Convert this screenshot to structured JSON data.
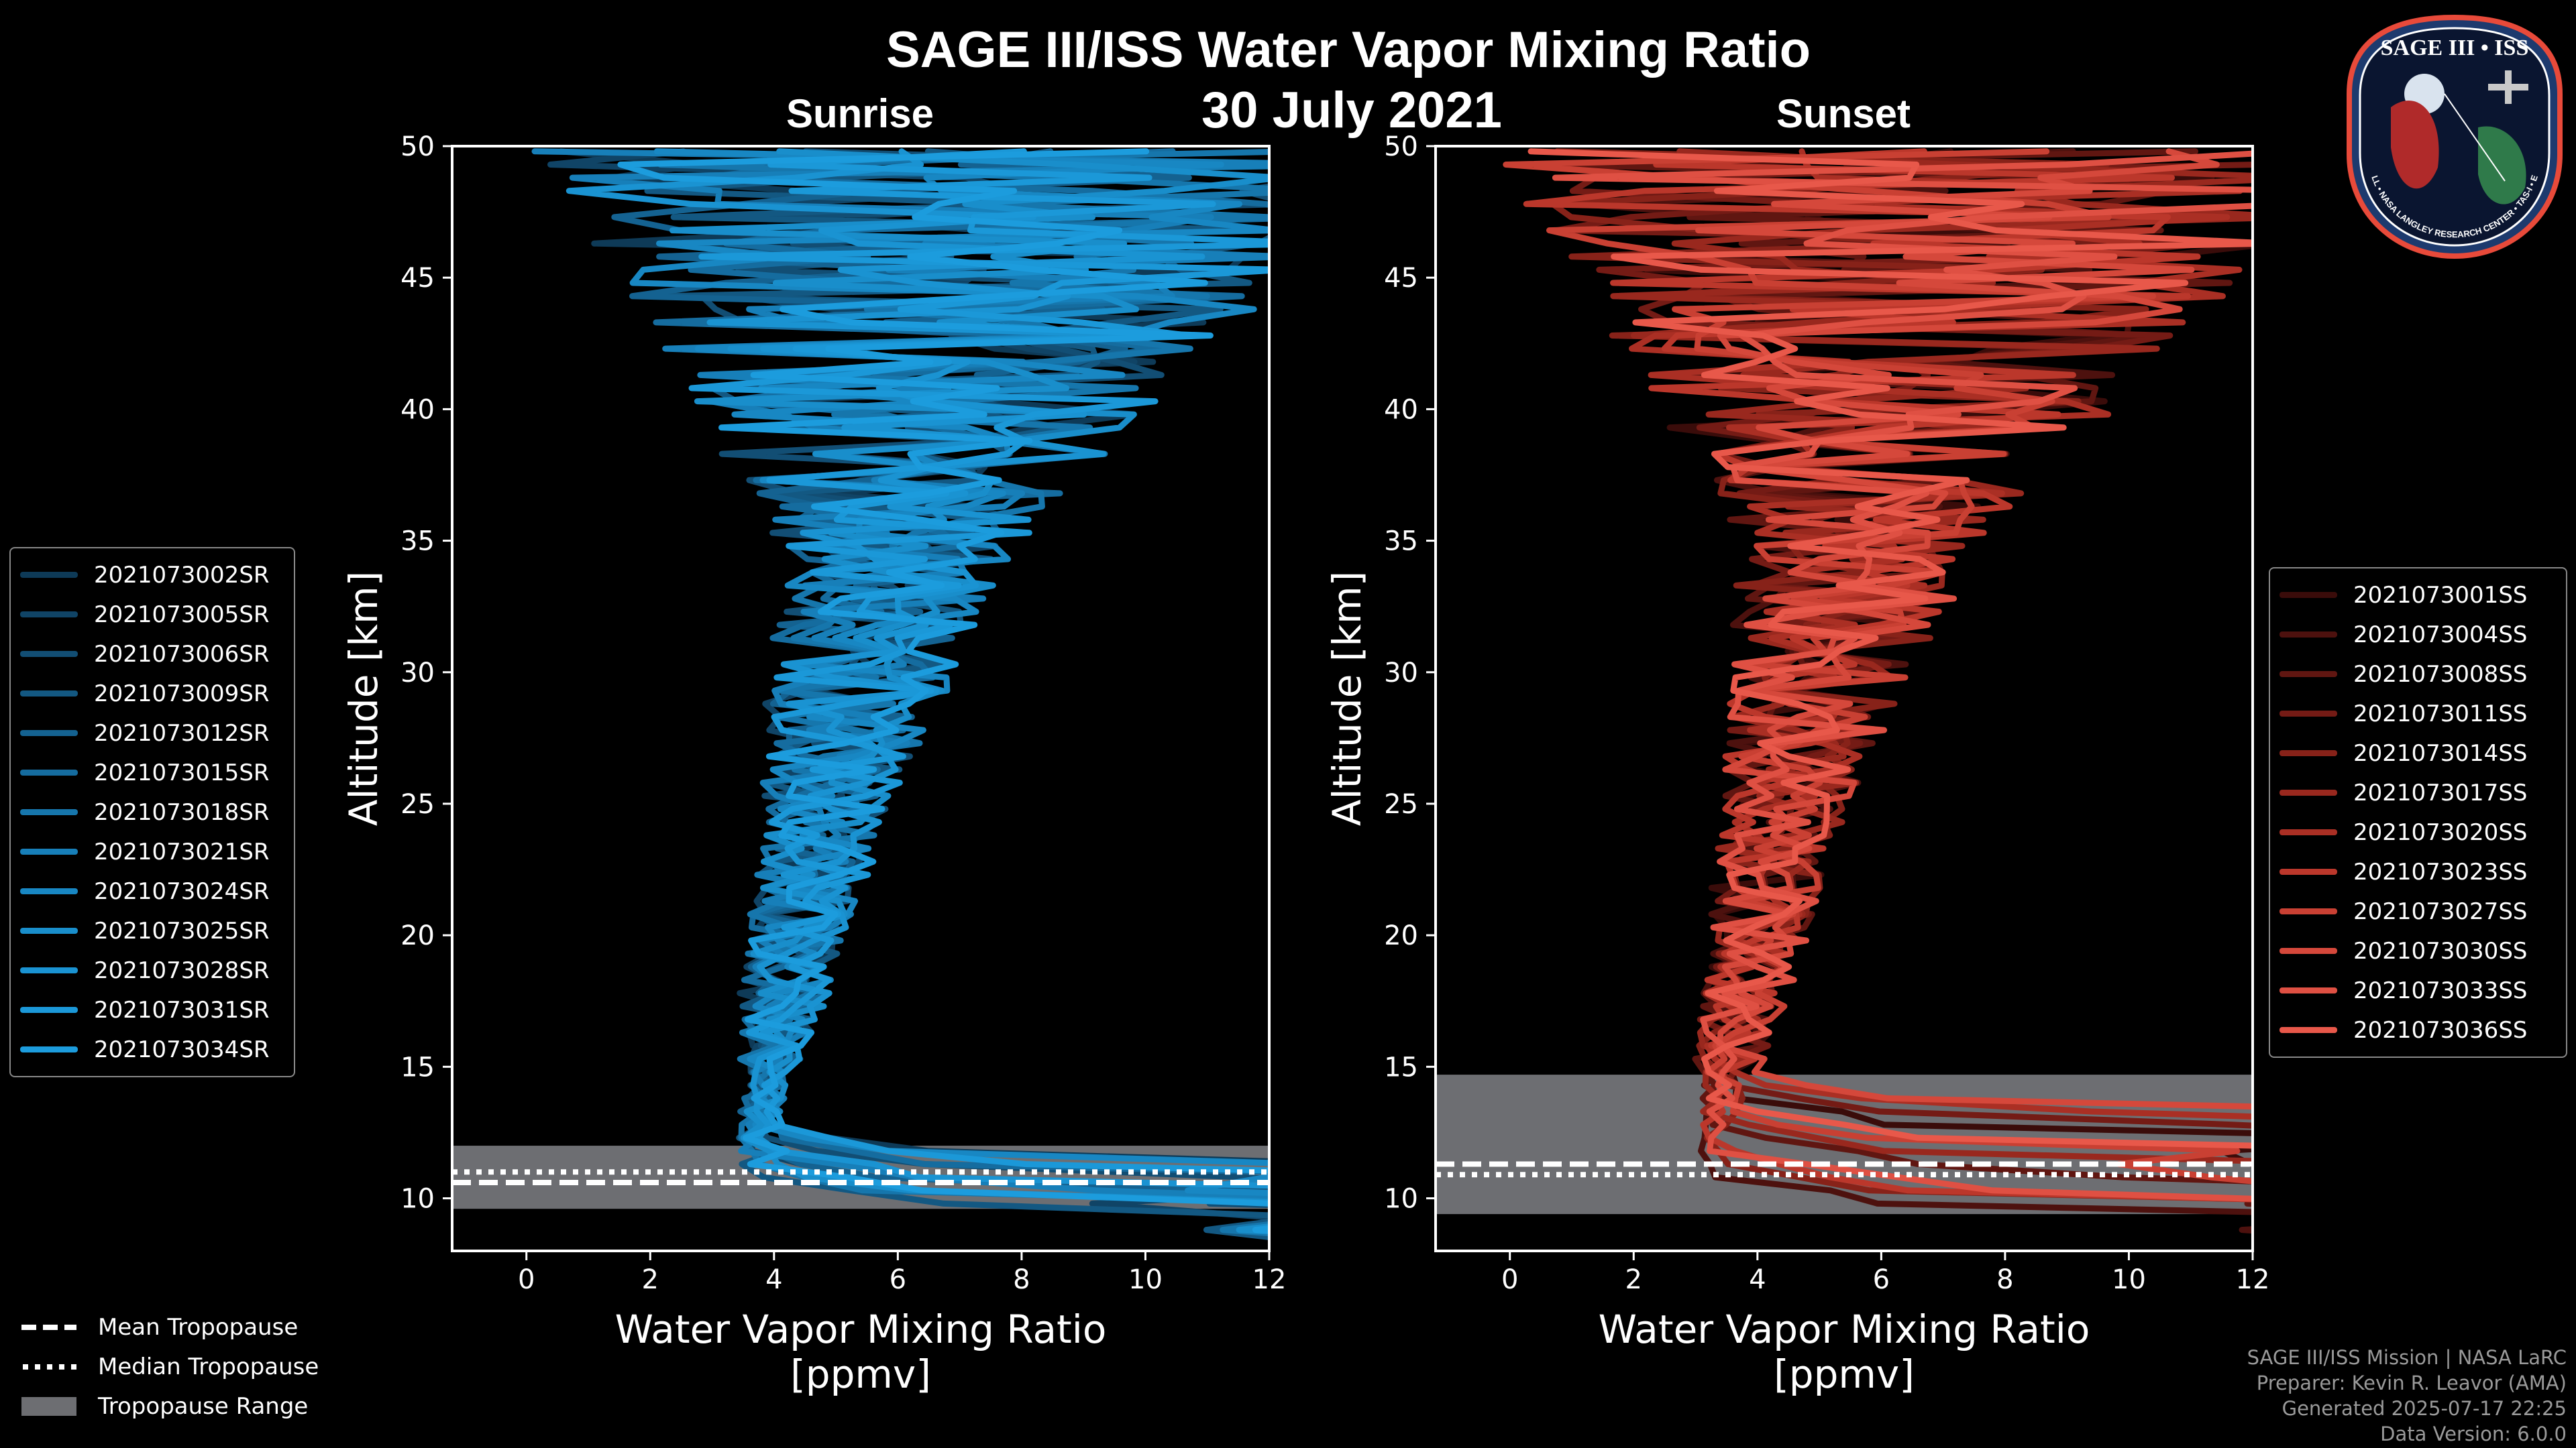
{
  "title": "SAGE III/ISS Water Vapor Mixing Ratio",
  "date": "30 July 2021",
  "colors": {
    "sunrise": "#1a8fd1",
    "sunset": "#e8584a",
    "tropopause_range": "#6d6e72",
    "background": "#000000"
  },
  "chart_data": [
    {
      "type": "line",
      "panel": "Sunrise",
      "title": "Sunrise",
      "xlabel": "Water Vapor Mixing Ratio\n[ppmv]",
      "xlabel_line1": "Water Vapor Mixing Ratio",
      "xlabel_line2": "[ppmv]",
      "ylabel": "Altitude [km]",
      "xlim": [
        -1.2,
        12
      ],
      "ylim": [
        8,
        50
      ],
      "xticks": [
        "0",
        "2",
        "4",
        "6",
        "8",
        "10",
        "12"
      ],
      "yticks": [
        "10",
        "15",
        "20",
        "25",
        "30",
        "35",
        "40",
        "45",
        "50"
      ],
      "tropopause": {
        "mean_km": 10.6,
        "median_km": 11.0,
        "range_km": [
          9.6,
          12.0
        ]
      },
      "series": [
        {
          "name": "2021073002SR",
          "color": "#0e3a57"
        },
        {
          "name": "2021073005SR",
          "color": "#104466"
        },
        {
          "name": "2021073006SR",
          "color": "#124e74"
        },
        {
          "name": "2021073009SR",
          "color": "#135882"
        },
        {
          "name": "2021073012SR",
          "color": "#146291"
        },
        {
          "name": "2021073015SR",
          "color": "#156c9f"
        },
        {
          "name": "2021073018SR",
          "color": "#1676ac"
        },
        {
          "name": "2021073021SR",
          "color": "#177fb9"
        },
        {
          "name": "2021073024SR",
          "color": "#1887c3"
        },
        {
          "name": "2021073025SR",
          "color": "#198ecb"
        },
        {
          "name": "2021073028SR",
          "color": "#1a93d2"
        },
        {
          "name": "2021073031SR",
          "color": "#1b98d8"
        },
        {
          "name": "2021073034SR",
          "color": "#1c9cdd"
        }
      ]
    },
    {
      "type": "line",
      "panel": "Sunset",
      "title": "Sunset",
      "xlabel": "Water Vapor Mixing Ratio\n[ppmv]",
      "xlabel_line1": "Water Vapor Mixing Ratio",
      "xlabel_line2": "[ppmv]",
      "ylabel": "Altitude [km]",
      "xlim": [
        -1.2,
        12
      ],
      "ylim": [
        8,
        50
      ],
      "xticks": [
        "0",
        "2",
        "4",
        "6",
        "8",
        "10",
        "12"
      ],
      "yticks": [
        "10",
        "15",
        "20",
        "25",
        "30",
        "35",
        "40",
        "45",
        "50"
      ],
      "tropopause": {
        "mean_km": 11.3,
        "median_km": 10.9,
        "range_km": [
          9.4,
          14.7
        ]
      },
      "series": [
        {
          "name": "2021073001SS",
          "color": "#3a0c0a"
        },
        {
          "name": "2021073004SS",
          "color": "#4d110e"
        },
        {
          "name": "2021073008SS",
          "color": "#601611"
        },
        {
          "name": "2021073011SS",
          "color": "#741b15"
        },
        {
          "name": "2021073014SS",
          "color": "#872219"
        },
        {
          "name": "2021073017SS",
          "color": "#99281e"
        },
        {
          "name": "2021073020SS",
          "color": "#aa2f24"
        },
        {
          "name": "2021073023SS",
          "color": "#bb372b"
        },
        {
          "name": "2021073027SS",
          "color": "#c94033"
        },
        {
          "name": "2021073030SS",
          "color": "#d5483b"
        },
        {
          "name": "2021073033SS",
          "color": "#df5043"
        },
        {
          "name": "2021073036SS",
          "color": "#e8584a"
        }
      ]
    }
  ],
  "bottom_legend": {
    "mean": "Mean Tropopause",
    "median": "Median Tropopause",
    "range": "Tropopause Range"
  },
  "credits": {
    "line1": "SAGE III/ISS Mission | NASA LaRC",
    "line2": "Preparer: Kevin R. Leavor (AMA)",
    "line3": "Generated 2025-07-17 22:25",
    "line4": "Data Version: 6.0.0"
  },
  "logo": {
    "top_text": "SAGE III • ISS",
    "ring_text": "BALL • NASA LANGLEY RESEARCH CENTER • TAS-I • ESA"
  }
}
